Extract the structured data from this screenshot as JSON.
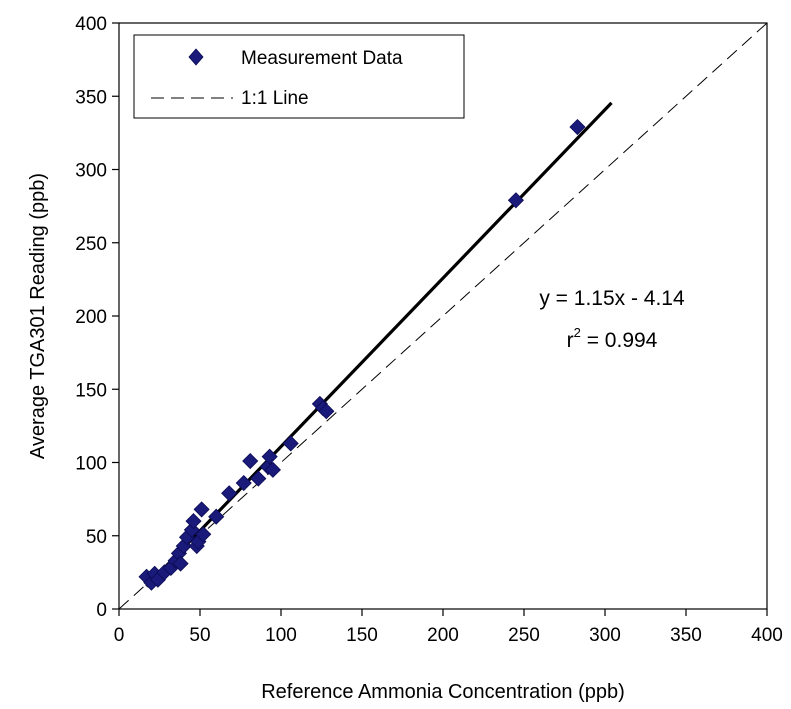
{
  "chart_data": {
    "type": "scatter",
    "xlabel": "Reference Ammonia Concentration (ppb)",
    "ylabel": "Average TGA301 Reading (ppb)",
    "xlim": [
      0,
      400
    ],
    "ylim": [
      0,
      400
    ],
    "xticks": [
      "0",
      "50",
      "100",
      "150",
      "200",
      "250",
      "300",
      "350",
      "400"
    ],
    "yticks": [
      "0",
      "50",
      "100",
      "150",
      "200",
      "250",
      "300",
      "350",
      "400"
    ],
    "grid": false,
    "legend_position": "top-left",
    "series": [
      {
        "name": "Measurement Data",
        "marker": "diamond",
        "color": "#1a1a7a",
        "points": [
          [
            17,
            22
          ],
          [
            20,
            18
          ],
          [
            22,
            24
          ],
          [
            24,
            20
          ],
          [
            28,
            25
          ],
          [
            32,
            28
          ],
          [
            35,
            33
          ],
          [
            37,
            38
          ],
          [
            38,
            31
          ],
          [
            40,
            43
          ],
          [
            42,
            49
          ],
          [
            45,
            54
          ],
          [
            46,
            60
          ],
          [
            48,
            43
          ],
          [
            49,
            46
          ],
          [
            51,
            68
          ],
          [
            52,
            51
          ],
          [
            60,
            63
          ],
          [
            68,
            79
          ],
          [
            77,
            86
          ],
          [
            81,
            101
          ],
          [
            86,
            89
          ],
          [
            92,
            97
          ],
          [
            93,
            104
          ],
          [
            95,
            95
          ],
          [
            106,
            113
          ],
          [
            124,
            140
          ],
          [
            126,
            137
          ],
          [
            128,
            135
          ],
          [
            245,
            279
          ],
          [
            283,
            329
          ]
        ]
      },
      {
        "name": "1:1 Line",
        "style": "dashed",
        "color": "#000000"
      }
    ],
    "fit_line": {
      "slope": 1.15,
      "intercept": -4.14,
      "x_range": [
        17,
        304
      ]
    },
    "annotation": {
      "line1": "y = 1.15x - 4.14",
      "r_label": "r",
      "r_sup": "2",
      "r_value": " = 0.994"
    }
  }
}
